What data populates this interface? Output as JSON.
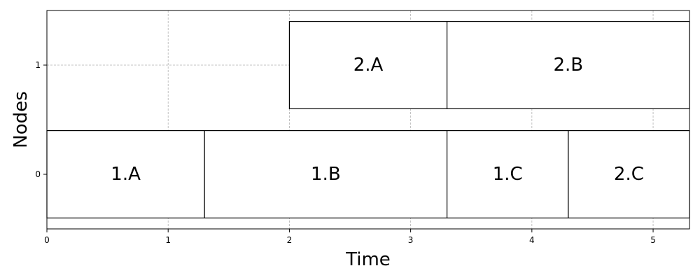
{
  "chart_data": {
    "type": "gantt",
    "xlabel": "Time",
    "ylabel": "Nodes",
    "xlim": [
      0,
      5.3
    ],
    "ylim": [
      -0.5,
      1.5
    ],
    "x_ticks": [
      0,
      1,
      2,
      3,
      4,
      5
    ],
    "y_ticks": [
      0,
      1
    ],
    "grid": true,
    "bar_half_height": 0.4,
    "tasks": [
      {
        "label": "1.A",
        "node": 0,
        "start": 0,
        "end": 1.3
      },
      {
        "label": "1.B",
        "node": 0,
        "start": 1.3,
        "end": 3.3
      },
      {
        "label": "1.C",
        "node": 0,
        "start": 3.3,
        "end": 4.3
      },
      {
        "label": "2.C",
        "node": 0,
        "start": 4.3,
        "end": 5.3
      },
      {
        "label": "2.A",
        "node": 1,
        "start": 2.0,
        "end": 3.3
      },
      {
        "label": "2.B",
        "node": 1,
        "start": 3.3,
        "end": 5.3
      }
    ]
  }
}
